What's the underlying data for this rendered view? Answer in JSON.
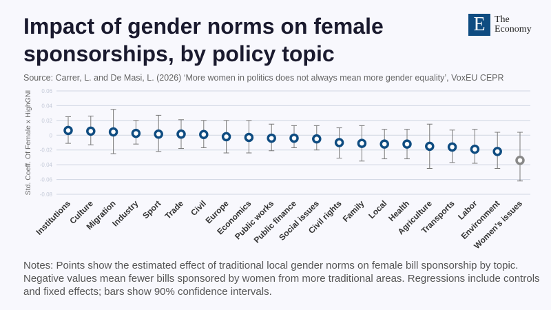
{
  "header": {
    "title": "Impact of gender norms on female sponsorships, by policy topic",
    "source": "Source: Carrer, L. and De Masi, L. (2026) ‘More women in politics does not always mean more gender equality’, VoxEU CEPR"
  },
  "logo": {
    "letter": "E",
    "line1": "The",
    "line2": "Economy"
  },
  "notes": "Notes: Points show the estimated effect of traditional local gender norms on female bill sponsorship by topic. Negative values mean fewer bills sponsored by women from more traditional areas. Regressions include controls and fixed effects; bars show 90% confidence intervals.",
  "chart_data": {
    "type": "scatter",
    "ylabel": "Std. Coeff. Of Female x HighGNI",
    "ylim": [
      -0.08,
      0.06
    ],
    "yticks": [
      0.06,
      0.04,
      0.02,
      0,
      -0.02,
      -0.04,
      -0.06,
      -0.08
    ],
    "ytick_labels": [
      "0.06",
      "0.04",
      "0.02",
      "0",
      "-0.02",
      "-0.04",
      "-0.06",
      "-0.08"
    ],
    "grid": true,
    "categories": [
      "Institutions",
      "Culture",
      "Migration",
      "Industry",
      "Sport",
      "Trade",
      "Civil",
      "Europe",
      "Economics",
      "Public works",
      "Public finance",
      "Social issues",
      "Civil rights",
      "Family",
      "Local",
      "Health",
      "Agriculture",
      "Transports",
      "Labor",
      "Environment",
      "Women's issues"
    ],
    "values": [
      0.0065,
      0.0055,
      0.0045,
      0.0025,
      0.0015,
      0.0015,
      0.001,
      -0.002,
      -0.003,
      -0.004,
      -0.004,
      -0.005,
      -0.01,
      -0.011,
      -0.012,
      -0.012,
      -0.015,
      -0.016,
      -0.019,
      -0.022,
      -0.034
    ],
    "ci_low": [
      -0.011,
      -0.013,
      -0.025,
      -0.012,
      -0.022,
      -0.018,
      -0.017,
      -0.024,
      -0.024,
      -0.021,
      -0.017,
      -0.02,
      -0.031,
      -0.035,
      -0.032,
      -0.032,
      -0.045,
      -0.037,
      -0.038,
      -0.045,
      -0.062
    ],
    "ci_high": [
      0.025,
      0.026,
      0.035,
      0.02,
      0.027,
      0.021,
      0.02,
      0.02,
      0.02,
      0.015,
      0.013,
      0.013,
      0.01,
      0.013,
      0.008,
      0.008,
      0.015,
      0.007,
      0.008,
      0.004,
      0.004
    ],
    "colors": {
      "point": "#0f4c81",
      "highlight": "#888888",
      "errorbar": "#777777",
      "grid": "#d0d6e2"
    },
    "highlight_category": "Women's issues"
  }
}
